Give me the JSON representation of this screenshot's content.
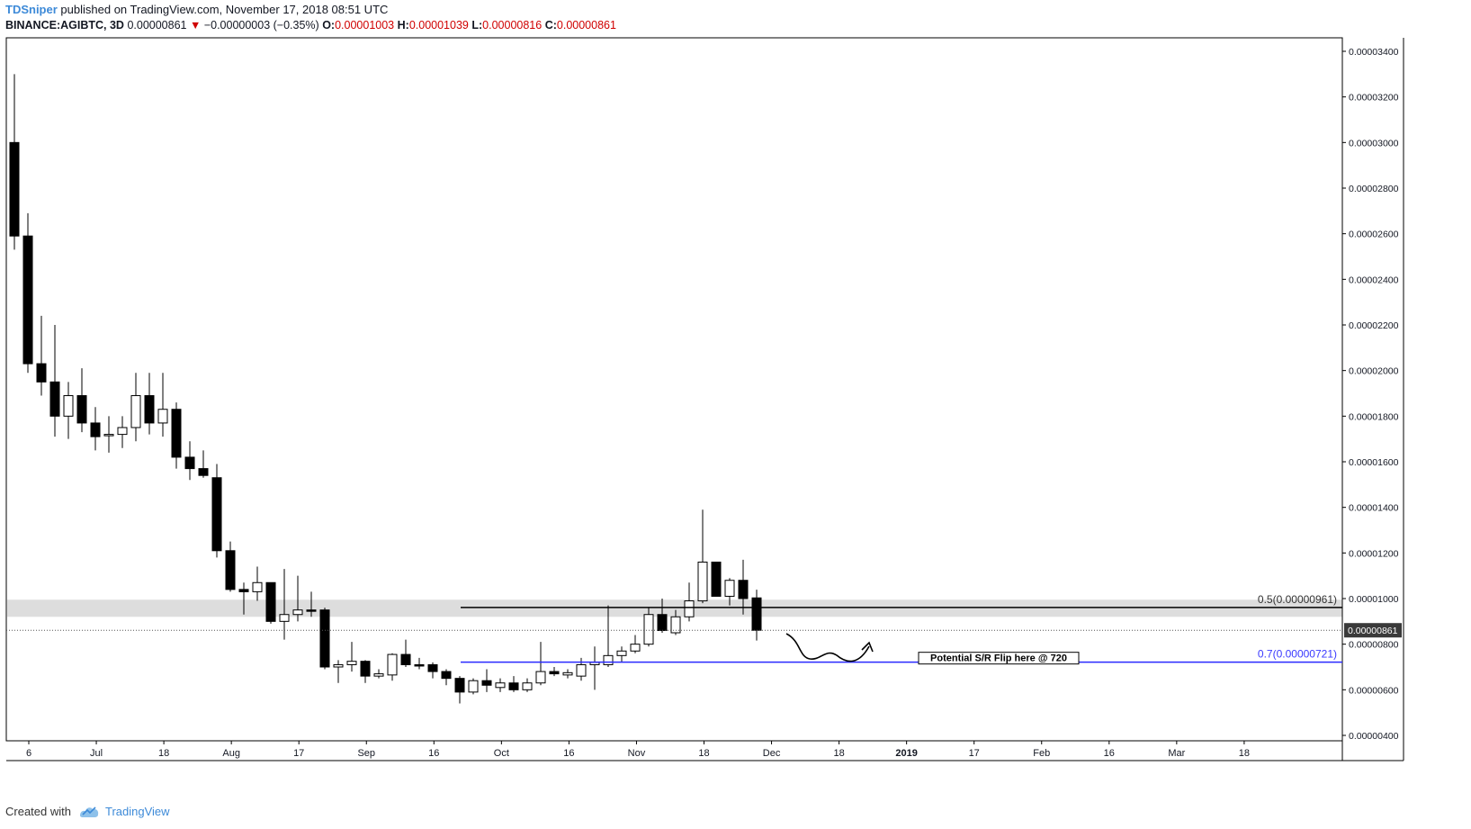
{
  "header": {
    "author": "TDSniper",
    "published": "published on TradingView.com, November 17, 2018 08:51 UTC",
    "symbol": "BINANCE:AGIBTC, 3D",
    "last": "0.00000861",
    "change": "−0.00000003 (−0.35%)",
    "o_label": "O:",
    "o": "0.00001003",
    "h_label": "H:",
    "h": "0.00001039",
    "l_label": "L:",
    "l": "0.00000816",
    "c_label": "C:",
    "c": "0.00000861"
  },
  "footer": {
    "created_with": "Created with",
    "brand": "TradingView"
  },
  "colors": {
    "up_fill": "#ffffff",
    "down_fill": "#000000",
    "wick": "#000000",
    "fib_05": "#000000",
    "fib_07": "#2a2aff",
    "zone": "#dddddd",
    "grid": "#000000"
  },
  "chart_data": {
    "type": "candlestick",
    "timeframe": "3D",
    "ylim": [
      3.7e-06,
      3.5e-06
    ],
    "y_ticks": [
      "0.00003400",
      "0.00003200",
      "0.00003000",
      "0.00002800",
      "0.00002600",
      "0.00002400",
      "0.00002200",
      "0.00002000",
      "0.00001800",
      "0.00001600",
      "0.00001400",
      "0.00001200",
      "0.00001000",
      "0.00000800",
      "0.00000600",
      "0.00000400"
    ],
    "x_ticks": [
      "6",
      "Jul",
      "18",
      "Aug",
      "17",
      "Sep",
      "16",
      "Oct",
      "16",
      "Nov",
      "18",
      "Dec",
      "18",
      "2019",
      "17",
      "Feb",
      "16",
      "Mar",
      "18"
    ],
    "x_tick_bold": [
      "2019"
    ],
    "last_price_label": "0.00000861",
    "candles": [
      {
        "o": 3e-05,
        "h": 3.3e-05,
        "l": 2.53e-05,
        "c": 2.59e-05
      },
      {
        "o": 2.59e-05,
        "h": 2.69e-05,
        "l": 1.99e-05,
        "c": 2.03e-05
      },
      {
        "o": 2.03e-05,
        "h": 2.24e-05,
        "l": 1.89e-05,
        "c": 1.95e-05
      },
      {
        "o": 1.95e-05,
        "h": 2.2e-05,
        "l": 1.71e-05,
        "c": 1.8e-05
      },
      {
        "o": 1.8e-05,
        "h": 1.95e-05,
        "l": 1.7e-05,
        "c": 1.89e-05
      },
      {
        "o": 1.89e-05,
        "h": 2.01e-05,
        "l": 1.73e-05,
        "c": 1.77e-05
      },
      {
        "o": 1.77e-05,
        "h": 1.84e-05,
        "l": 1.65e-05,
        "c": 1.71e-05
      },
      {
        "o": 1.715e-05,
        "h": 1.8e-05,
        "l": 1.64e-05,
        "c": 1.72e-05
      },
      {
        "o": 1.72e-05,
        "h": 1.8e-05,
        "l": 1.66e-05,
        "c": 1.75e-05
      },
      {
        "o": 1.75e-05,
        "h": 1.99e-05,
        "l": 1.69e-05,
        "c": 1.89e-05
      },
      {
        "o": 1.89e-05,
        "h": 1.99e-05,
        "l": 1.72e-05,
        "c": 1.77e-05
      },
      {
        "o": 1.77e-05,
        "h": 1.99e-05,
        "l": 1.71e-05,
        "c": 1.83e-05
      },
      {
        "o": 1.83e-05,
        "h": 1.86e-05,
        "l": 1.57e-05,
        "c": 1.62e-05
      },
      {
        "o": 1.62e-05,
        "h": 1.69e-05,
        "l": 1.52e-05,
        "c": 1.57e-05
      },
      {
        "o": 1.57e-05,
        "h": 1.65e-05,
        "l": 1.53e-05,
        "c": 1.54e-05
      },
      {
        "o": 1.53e-05,
        "h": 1.59e-05,
        "l": 1.18e-05,
        "c": 1.21e-05
      },
      {
        "o": 1.21e-05,
        "h": 1.25e-05,
        "l": 1.03e-05,
        "c": 1.04e-05
      },
      {
        "o": 1.04e-05,
        "h": 1.07e-05,
        "l": 9.3e-06,
        "c": 1.03e-05
      },
      {
        "o": 1.03e-05,
        "h": 1.14e-05,
        "l": 9.9e-06,
        "c": 1.07e-05
      },
      {
        "o": 1.07e-05,
        "h": 1.07e-05,
        "l": 8.9e-06,
        "c": 9e-06
      },
      {
        "o": 9e-06,
        "h": 1.13e-05,
        "l": 8.2e-06,
        "c": 9.3e-06
      },
      {
        "o": 9.3e-06,
        "h": 1.1e-05,
        "l": 9e-06,
        "c": 9.5e-06
      },
      {
        "o": 9.5e-06,
        "h": 1.03e-05,
        "l": 9.2e-06,
        "c": 9.45e-06
      },
      {
        "o": 9.5e-06,
        "h": 9.6e-06,
        "l": 6.9e-06,
        "c": 7e-06
      },
      {
        "o": 7e-06,
        "h": 7.3e-06,
        "l": 6.3e-06,
        "c": 7.1e-06
      },
      {
        "o": 7.1e-06,
        "h": 8.1e-06,
        "l": 6.8e-06,
        "c": 7.25e-06
      },
      {
        "o": 7.25e-06,
        "h": 7.3e-06,
        "l": 6.3e-06,
        "c": 6.6e-06
      },
      {
        "o": 6.6e-06,
        "h": 6.9e-06,
        "l": 6.5e-06,
        "c": 6.7e-06
      },
      {
        "o": 6.65e-06,
        "h": 7.6e-06,
        "l": 6.4e-06,
        "c": 7.55e-06
      },
      {
        "o": 7.55e-06,
        "h": 8.2e-06,
        "l": 7e-06,
        "c": 7.1e-06
      },
      {
        "o": 7.1e-06,
        "h": 7.4e-06,
        "l": 6.9e-06,
        "c": 7.05e-06
      },
      {
        "o": 7.1e-06,
        "h": 7.2e-06,
        "l": 6.5e-06,
        "c": 6.8e-06
      },
      {
        "o": 6.8e-06,
        "h": 6.9e-06,
        "l": 6.2e-06,
        "c": 6.5e-06
      },
      {
        "o": 6.5e-06,
        "h": 6.6e-06,
        "l": 5.4e-06,
        "c": 5.9e-06
      },
      {
        "o": 5.9e-06,
        "h": 6.5e-06,
        "l": 5.8e-06,
        "c": 6.4e-06
      },
      {
        "o": 6.4e-06,
        "h": 6.9e-06,
        "l": 5.9e-06,
        "c": 6.2e-06
      },
      {
        "o": 6.1e-06,
        "h": 6.5e-06,
        "l": 5.9e-06,
        "c": 6.3e-06
      },
      {
        "o": 6.3e-06,
        "h": 6.6e-06,
        "l": 5.9e-06,
        "c": 6e-06
      },
      {
        "o": 6e-06,
        "h": 6.5e-06,
        "l": 5.9e-06,
        "c": 6.3e-06
      },
      {
        "o": 6.3e-06,
        "h": 8.1e-06,
        "l": 6.2e-06,
        "c": 6.8e-06
      },
      {
        "o": 6.8e-06,
        "h": 7e-06,
        "l": 6.6e-06,
        "c": 6.7e-06
      },
      {
        "o": 6.65e-06,
        "h": 6.9e-06,
        "l": 6.5e-06,
        "c": 6.75e-06
      },
      {
        "o": 6.6e-06,
        "h": 7.4e-06,
        "l": 6.4e-06,
        "c": 7.1e-06
      },
      {
        "o": 7.1e-06,
        "h": 7.9e-06,
        "l": 6e-06,
        "c": 7.2e-06
      },
      {
        "o": 7.1e-06,
        "h": 9.7e-06,
        "l": 7e-06,
        "c": 7.5e-06
      },
      {
        "o": 7.5e-06,
        "h": 7.9e-06,
        "l": 7.2e-06,
        "c": 7.7e-06
      },
      {
        "o": 7.7e-06,
        "h": 8.4e-06,
        "l": 7.6e-06,
        "c": 8e-06
      },
      {
        "o": 8e-06,
        "h": 9.6e-06,
        "l": 7.9e-06,
        "c": 9.3e-06
      },
      {
        "o": 9.3e-06,
        "h": 1e-05,
        "l": 8.5e-06,
        "c": 8.6e-06
      },
      {
        "o": 8.5e-06,
        "h": 9.5e-06,
        "l": 8.4e-06,
        "c": 9.2e-06
      },
      {
        "o": 9.2e-06,
        "h": 1.07e-05,
        "l": 9e-06,
        "c": 9.9e-06
      },
      {
        "o": 9.9e-06,
        "h": 1.39e-05,
        "l": 9.8e-06,
        "c": 1.16e-05
      },
      {
        "o": 1.16e-05,
        "h": 1.16e-05,
        "l": 1.01e-05,
        "c": 1.01e-05
      },
      {
        "o": 1.01e-05,
        "h": 1.09e-05,
        "l": 9.7e-06,
        "c": 1.08e-05
      },
      {
        "o": 1.08e-05,
        "h": 1.17e-05,
        "l": 9.3e-06,
        "c": 1e-05
      },
      {
        "o": 1.003e-05,
        "h": 1.039e-05,
        "l": 8.16e-06,
        "c": 8.61e-06
      }
    ],
    "fib_levels": [
      {
        "label": "0.5(0.00000961)",
        "value": 9.61e-06
      },
      {
        "label": "0.7(0.00000721)",
        "value": 7.21e-06
      }
    ],
    "zone": [
      9.2e-06,
      9.95e-06
    ],
    "annotation": "Potential S/R Flip here @ 720"
  }
}
